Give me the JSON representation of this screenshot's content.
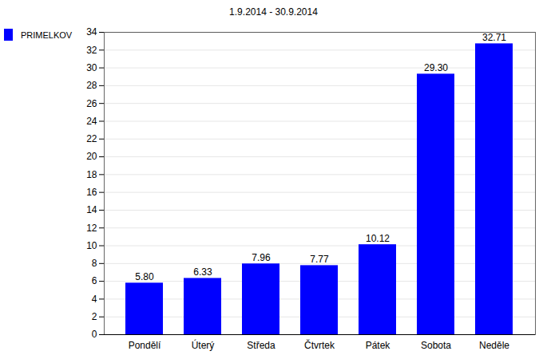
{
  "chart_data": {
    "type": "bar",
    "title": "1.9.2014 - 30.9.2014",
    "categories": [
      "Pondělí",
      "Úterý",
      "Středa",
      "Čtvrtek",
      "Pátek",
      "Sobota",
      "Neděle"
    ],
    "series": [
      {
        "name": "PRIMELKOV",
        "color": "#0000ff",
        "values": [
          5.8,
          6.33,
          7.96,
          7.77,
          10.12,
          29.3,
          32.71
        ],
        "value_labels": [
          "5.80",
          "6.33",
          "7.96",
          "7.77",
          "10.12",
          "29.30",
          "32.71"
        ]
      }
    ],
    "ylim": [
      0,
      34
    ],
    "yticks": [
      0,
      2,
      4,
      6,
      8,
      10,
      12,
      14,
      16,
      18,
      20,
      22,
      24,
      26,
      28,
      30,
      32,
      34
    ],
    "grid": true,
    "data_labels": true,
    "legend": "top-left"
  }
}
